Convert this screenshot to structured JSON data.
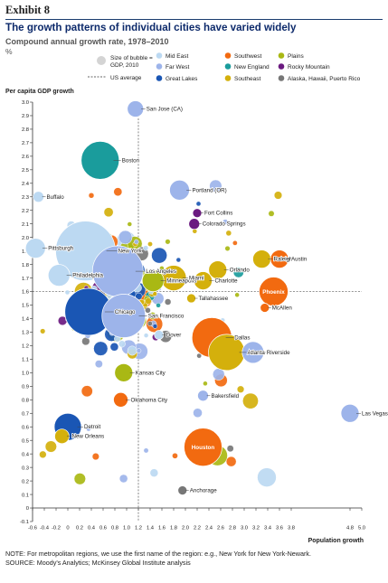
{
  "header": {
    "exhibit": "Exhibit 8",
    "title": "The growth patterns of individual cities have varied widely",
    "subtitle": "Compound annual growth rate, 1978–2010",
    "unit": "%"
  },
  "legend": {
    "bubble_label": "Size of bubble = GDP, 2010",
    "average_label": "US average",
    "regions": [
      {
        "name": "Mid East",
        "color": "#bcd9f2"
      },
      {
        "name": "Southwest",
        "color": "#f26a10"
      },
      {
        "name": "Plains",
        "color": "#a9b814"
      },
      {
        "name": "Far West",
        "color": "#9db4ea"
      },
      {
        "name": "New England",
        "color": "#1a9c9c"
      },
      {
        "name": "Rocky Mountain",
        "color": "#6b1a80"
      },
      {
        "name": "Great Lakes",
        "color": "#1a56b4"
      },
      {
        "name": "Southeast",
        "color": "#d4b00c"
      },
      {
        "name": "Alaska, Hawaii, Puerto Rico",
        "color": "#777777"
      }
    ]
  },
  "chart_data": {
    "type": "scatter",
    "xlabel": "Population growth",
    "ylabel": "Per capita GDP growth",
    "xlim": [
      -0.6,
      5.0
    ],
    "ylim": [
      -0.1,
      3.0
    ],
    "x_ticks": [
      "-0.6",
      "-0.4",
      "-0.2",
      "0",
      "0.2",
      "0.4",
      "0.6",
      "0.8",
      "1.0",
      "1.2",
      "1.4",
      "1.6",
      "1.8",
      "2.0",
      "2.2",
      "2.4",
      "2.6",
      "2.8",
      "3.0",
      "3.2",
      "3.4",
      "3.6",
      "3.8",
      "4.8",
      "5.0"
    ],
    "y_ticks": [
      "-0.1",
      "0",
      "0.1",
      "0.2",
      "0.3",
      "0.4",
      "0.5",
      "0.6",
      "0.7",
      "0.8",
      "0.9",
      "1.0",
      "1.1",
      "1.2",
      "1.3",
      "1.4",
      "1.5",
      "1.6",
      "1.7",
      "1.8",
      "1.9",
      "2.0",
      "2.1",
      "2.2",
      "2.3",
      "2.4",
      "2.5",
      "2.6",
      "2.7",
      "2.8",
      "2.9",
      "3.0"
    ],
    "us_average": {
      "x": 1.2,
      "y": 1.6
    },
    "labeled_cities": [
      {
        "label": "San Jose (CA)",
        "x": 1.15,
        "y": 2.95,
        "r": 9,
        "region": "Far West"
      },
      {
        "label": "Boston",
        "x": 0.55,
        "y": 2.57,
        "r": 21,
        "region": "New England"
      },
      {
        "label": "Buffalo",
        "x": -0.5,
        "y": 2.3,
        "r": 6,
        "region": "Mid East"
      },
      {
        "label": "Portland (OR)",
        "x": 1.9,
        "y": 2.35,
        "r": 11,
        "region": "Far West"
      },
      {
        "label": "Fort Collins",
        "x": 2.2,
        "y": 2.18,
        "r": 5,
        "region": "Rocky Mountain"
      },
      {
        "label": "Colorado Springs",
        "x": 2.15,
        "y": 2.1,
        "r": 6,
        "region": "Rocky Mountain"
      },
      {
        "label": "New York",
        "x": 0.3,
        "y": 1.9,
        "r": 33,
        "region": "Mid East"
      },
      {
        "label": "Los Angeles",
        "x": 0.85,
        "y": 1.75,
        "r": 28,
        "region": "Far West"
      },
      {
        "label": "Pittsburgh",
        "x": -0.55,
        "y": 1.92,
        "r": 11,
        "region": "Mid East"
      },
      {
        "label": "Raleigh",
        "x": 3.3,
        "y": 1.84,
        "r": 10,
        "region": "Southeast"
      },
      {
        "label": "Austin",
        "x": 3.6,
        "y": 1.84,
        "r": 10,
        "region": "Southwest"
      },
      {
        "label": "Philadelphia",
        "x": -0.15,
        "y": 1.72,
        "r": 12,
        "region": "Mid East"
      },
      {
        "label": "Minneapolis",
        "x": 1.45,
        "y": 1.68,
        "r": 12,
        "region": "Plains"
      },
      {
        "label": "Miami",
        "x": 1.8,
        "y": 1.7,
        "r": 14,
        "region": "Southeast"
      },
      {
        "label": "Orlando",
        "x": 2.55,
        "y": 1.76,
        "r": 10,
        "region": "Southeast"
      },
      {
        "label": "Charlotte",
        "x": 2.3,
        "y": 1.68,
        "r": 10,
        "region": "Southeast"
      },
      {
        "label": "Phoenix",
        "x": 3.5,
        "y": 1.6,
        "r": 16,
        "region": "Southwest"
      },
      {
        "label": "Tallahassee",
        "x": 2.1,
        "y": 1.55,
        "r": 5,
        "region": "Southeast"
      },
      {
        "label": "Dallas",
        "x": 2.45,
        "y": 1.26,
        "r": 22,
        "region": "Southwest"
      },
      {
        "label": "McAllen",
        "x": 3.35,
        "y": 1.48,
        "r": 5,
        "region": "Southwest"
      },
      {
        "label": "Dover",
        "x": 1.55,
        "y": 1.28,
        "r": 5,
        "region": "Mid East"
      },
      {
        "label": "Chicago",
        "x": 0.35,
        "y": 1.45,
        "r": 26,
        "region": "Great Lakes"
      },
      {
        "label": "San Francisco",
        "x": 0.95,
        "y": 1.42,
        "r": 24,
        "region": "Far West"
      },
      {
        "label": "Riverside",
        "x": 3.15,
        "y": 1.15,
        "r": 12,
        "region": "Far West"
      },
      {
        "label": "Atlanta",
        "x": 2.7,
        "y": 1.15,
        "r": 20,
        "region": "Southeast"
      },
      {
        "label": "Kansas City",
        "x": 0.95,
        "y": 1.0,
        "r": 10,
        "region": "Plains"
      },
      {
        "label": "Bakersfield",
        "x": 2.3,
        "y": 0.83,
        "r": 6,
        "region": "Far West"
      },
      {
        "label": "Oklahoma City",
        "x": 0.9,
        "y": 0.8,
        "r": 8,
        "region": "Southwest"
      },
      {
        "label": "Las Vegas",
        "x": 4.8,
        "y": 0.7,
        "r": 10,
        "region": "Far West"
      },
      {
        "label": "Detroit",
        "x": 0.0,
        "y": 0.6,
        "r": 15,
        "region": "Great Lakes"
      },
      {
        "label": "New Orleans",
        "x": -0.1,
        "y": 0.53,
        "r": 8,
        "region": "Southeast"
      },
      {
        "label": "Houston",
        "x": 2.3,
        "y": 0.45,
        "r": 21,
        "region": "Southwest"
      },
      {
        "label": "Anchorage",
        "x": 1.95,
        "y": 0.13,
        "r": 5,
        "region": "Alaska, Hawaii, Puerto Rico"
      }
    ]
  },
  "notes": {
    "note": "NOTE: For metropolitan regions, we use the first name of the region: e.g., New York for New York-Newark.",
    "source": "SOURCE: Moody's Analytics; McKinsey Global Institute analysis"
  }
}
